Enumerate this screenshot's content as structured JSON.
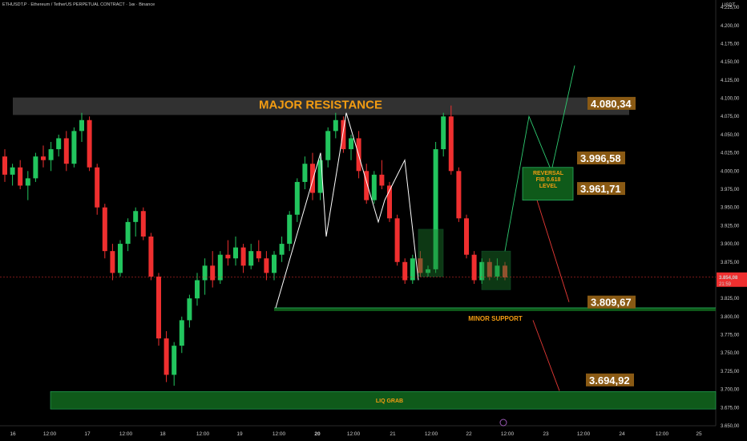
{
  "header": {
    "symbol_line": "ETHUSDT.P · Ethereum / TetherUS PERPETUAL CONTRACT · 1кк · Binance",
    "currency": "USDT"
  },
  "price_axis": {
    "ticks": [
      "4.225,00",
      "4.200,00",
      "4.175,00",
      "4.150,00",
      "4.125,00",
      "4.100,00",
      "4.075,00",
      "4.050,00",
      "4.025,00",
      "4.000,00",
      "3.975,00",
      "3.950,00",
      "3.925,00",
      "3.900,00",
      "3.875,00",
      "3.850,00",
      "3.825,00",
      "3.800,00",
      "3.775,00",
      "3.750,00",
      "3.725,00",
      "3.700,00",
      "3.675,00",
      "3.650,00"
    ],
    "current_price": "3.854,08",
    "countdown": "21:59"
  },
  "time_axis": {
    "labels": [
      "16",
      "12:00",
      "17",
      "12:00",
      "18",
      "12:00",
      "19",
      "12:00",
      "20",
      "12:00",
      "21",
      "12:00",
      "22",
      "12:00",
      "23",
      "12:00",
      "24",
      "12:00",
      "25"
    ]
  },
  "annotations": {
    "major_resistance": "MAJOR RESISTANCE",
    "minor_support": "MINOR SUPPORT",
    "liq_grab": "LIQ GRAB",
    "reversal": [
      "REVERSAL",
      "FIB 0.618",
      "LEVEL"
    ]
  },
  "levels": {
    "resistance": "4.080,34",
    "fib_upper": "3.996,58",
    "fib_lower": "3.961,71",
    "support": "3.809,67",
    "liq": "3.694,92"
  },
  "colors": {
    "up": "#22c55e",
    "down": "#ef2f2f",
    "resistance_zone": "#3a3a3a",
    "support_zone": "#0f5a1a",
    "label_bg": "#8a5a14",
    "accent_orange": "#f39c12",
    "current_price_bg": "#ef2f2f"
  },
  "chart_data": {
    "type": "candlestick",
    "symbol": "ETHUSDT.P",
    "ylim": [
      3650,
      4235
    ],
    "x_range_days": [
      "16",
      "25"
    ],
    "candles_ohlc_approx": [
      [
        4020,
        4030,
        3985,
        3995
      ],
      [
        3995,
        4010,
        3980,
        4005
      ],
      [
        4005,
        4015,
        3975,
        3980
      ],
      [
        3980,
        4000,
        3960,
        3990
      ],
      [
        3990,
        4025,
        3985,
        4020
      ],
      [
        4020,
        4035,
        4005,
        4015
      ],
      [
        4015,
        4040,
        4000,
        4030
      ],
      [
        4030,
        4050,
        4020,
        4045
      ],
      [
        4045,
        4055,
        4000,
        4010
      ],
      [
        4010,
        4060,
        4005,
        4055
      ],
      [
        4055,
        4080,
        4040,
        4070
      ],
      [
        4070,
        4075,
        4000,
        4005
      ],
      [
        4005,
        4010,
        3940,
        3950
      ],
      [
        3950,
        3955,
        3880,
        3890
      ],
      [
        3890,
        3900,
        3850,
        3860
      ],
      [
        3860,
        3905,
        3855,
        3900
      ],
      [
        3900,
        3935,
        3890,
        3930
      ],
      [
        3930,
        3950,
        3910,
        3945
      ],
      [
        3945,
        3950,
        3905,
        3910
      ],
      [
        3910,
        3915,
        3850,
        3855
      ],
      [
        3855,
        3860,
        3760,
        3770
      ],
      [
        3770,
        3780,
        3710,
        3720
      ],
      [
        3720,
        3765,
        3705,
        3760
      ],
      [
        3760,
        3800,
        3750,
        3795
      ],
      [
        3795,
        3830,
        3785,
        3825
      ],
      [
        3825,
        3860,
        3815,
        3850
      ],
      [
        3850,
        3880,
        3830,
        3870
      ],
      [
        3870,
        3890,
        3840,
        3850
      ],
      [
        3850,
        3890,
        3845,
        3885
      ],
      [
        3885,
        3905,
        3870,
        3880
      ],
      [
        3880,
        3910,
        3870,
        3895
      ],
      [
        3895,
        3900,
        3860,
        3870
      ],
      [
        3870,
        3900,
        3865,
        3890
      ],
      [
        3890,
        3905,
        3875,
        3880
      ],
      [
        3880,
        3890,
        3850,
        3860
      ],
      [
        3860,
        3890,
        3850,
        3885
      ],
      [
        3885,
        3910,
        3875,
        3900
      ],
      [
        3900,
        3945,
        3890,
        3940
      ],
      [
        3940,
        3990,
        3930,
        3985
      ],
      [
        3985,
        4020,
        3975,
        4010
      ],
      [
        4010,
        4025,
        3960,
        3970
      ],
      [
        3970,
        4020,
        3960,
        4015
      ],
      [
        4015,
        4060,
        4005,
        4055
      ],
      [
        4055,
        4080,
        4045,
        4070
      ],
      [
        4070,
        4075,
        4025,
        4030
      ],
      [
        4030,
        4050,
        4015,
        4045
      ],
      [
        4045,
        4055,
        3990,
        4000
      ],
      [
        4000,
        4010,
        3955,
        3960
      ],
      [
        3960,
        4000,
        3955,
        3995
      ],
      [
        3995,
        4015,
        3975,
        3980
      ],
      [
        3980,
        3985,
        3930,
        3935
      ],
      [
        3935,
        3940,
        3870,
        3875
      ],
      [
        3875,
        3880,
        3845,
        3850
      ],
      [
        3850,
        3885,
        3845,
        3880
      ],
      [
        3880,
        3890,
        3855,
        3860
      ],
      [
        3860,
        3870,
        3855,
        3865
      ],
      [
        3865,
        4040,
        3860,
        4030
      ],
      [
        4030,
        4080,
        4020,
        4075
      ],
      [
        4075,
        4090,
        3995,
        4000
      ],
      [
        4000,
        4005,
        3930,
        3935
      ],
      [
        3935,
        3940,
        3880,
        3885
      ],
      [
        3885,
        3890,
        3845,
        3850
      ],
      [
        3850,
        3880,
        3845,
        3875
      ],
      [
        3875,
        3880,
        3850,
        3855
      ],
      [
        3855,
        3880,
        3850,
        3870
      ],
      [
        3870,
        3875,
        3850,
        3854
      ]
    ],
    "levels": [
      {
        "name": "MAJOR RESISTANCE",
        "value": 4080.34
      },
      {
        "name": "REVERSAL FIB 0.618 LEVEL",
        "value_upper": 3996.58,
        "value_lower": 3961.71
      },
      {
        "name": "MINOR SUPPORT",
        "value": 3809.67
      },
      {
        "name": "LIQ GRAB",
        "value": 3694.92
      }
    ],
    "current_price": 3854.08,
    "projection_paths": [
      {
        "color": "green",
        "points": [
          [
            3870
          ],
          [
            4075
          ],
          [
            4000
          ],
          [
            4145
          ]
        ]
      },
      {
        "color": "red",
        "points": [
          [
            3960
          ],
          [
            3820
          ]
        ]
      },
      {
        "color": "red",
        "points": [
          [
            3800
          ],
          [
            3695
          ]
        ]
      }
    ]
  }
}
